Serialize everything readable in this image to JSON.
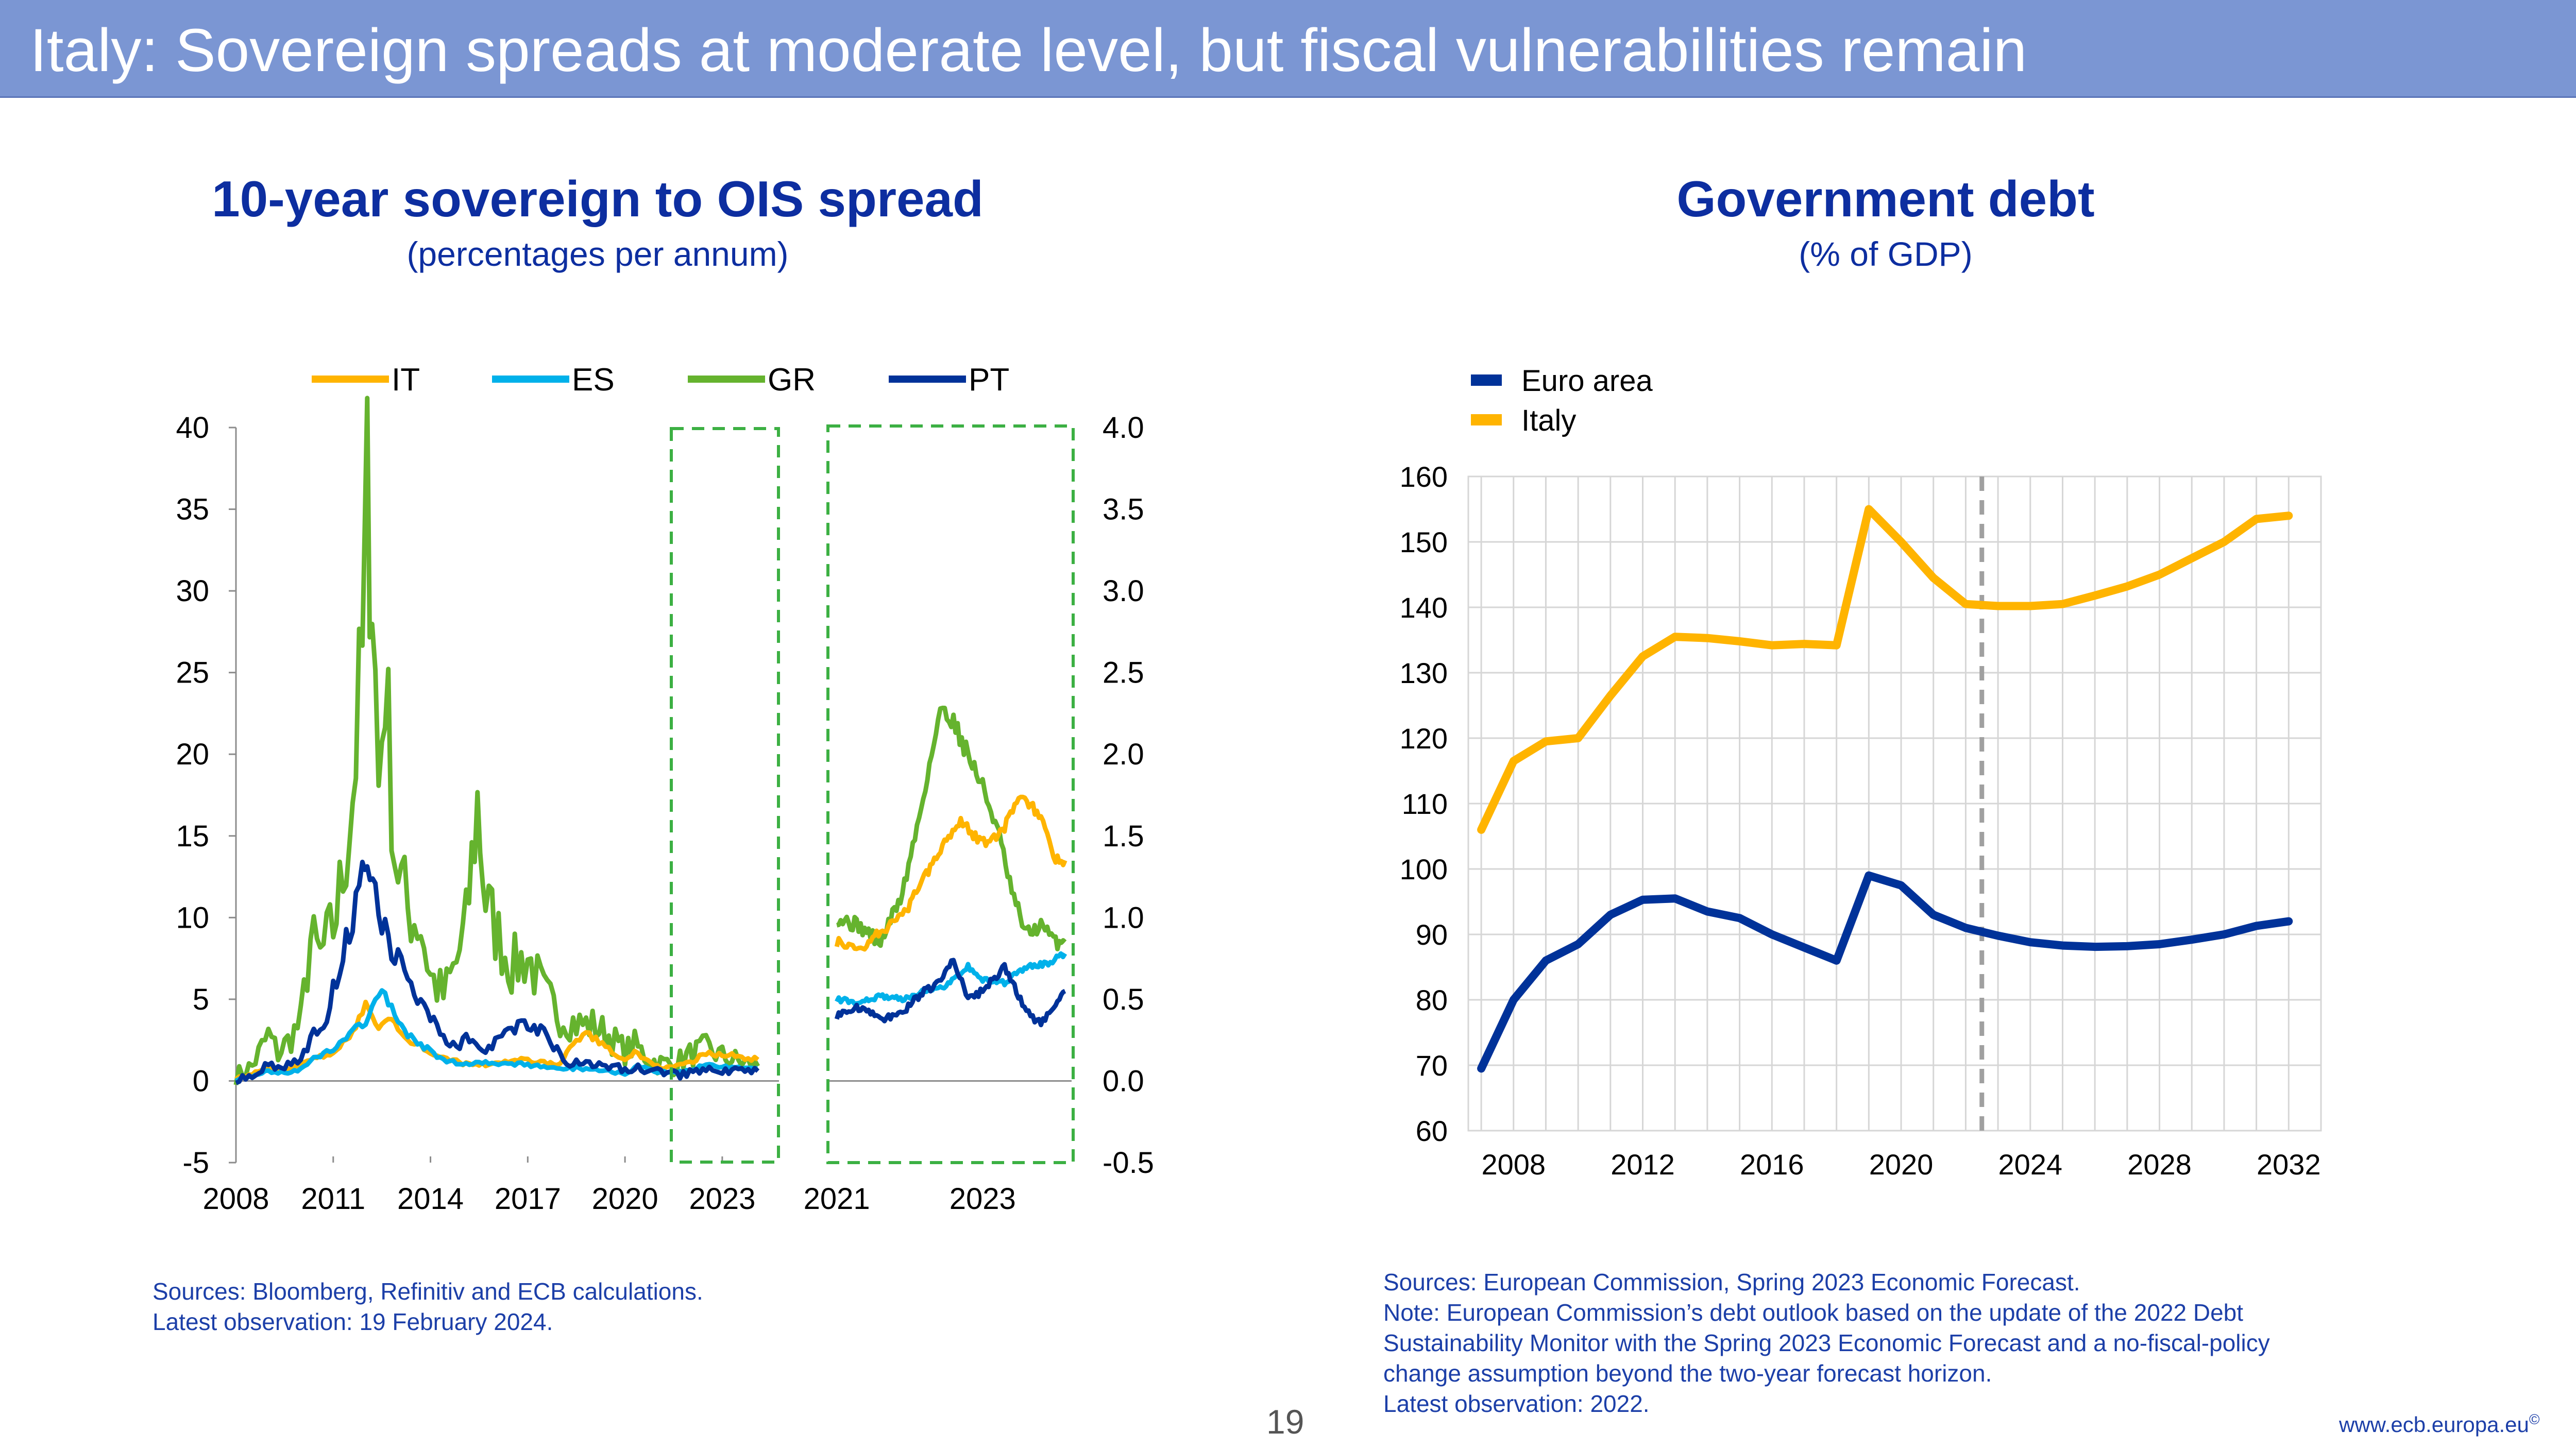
{
  "header": {
    "title": "Italy: Sovereign spreads at moderate level, but fiscal vulnerabilities remain"
  },
  "left_chart": {
    "title": "10-year sovereign to OIS spread",
    "subtitle": "(percentages per annum)",
    "legend": [
      "IT",
      "ES",
      "GR",
      "PT"
    ],
    "sources": "Sources: Bloomberg, Refinitiv and ECB calculations.",
    "latest": "Latest observation: 19 February 2024."
  },
  "right_chart": {
    "title": "Government debt",
    "subtitle": "(% of GDP)",
    "legend": [
      "Euro area",
      "Italy"
    ],
    "sources": "Sources: European Commission, Spring 2023 Economic Forecast.",
    "note_lines": [
      "Note: European Commission’s debt outlook based on the update of the 2022 Debt",
      "Sustainability Monitor with the Spring 2023 Economic Forecast and a no-fiscal-policy",
      "change assumption beyond the two-year forecast horizon."
    ],
    "latest": "Latest observation: 2022."
  },
  "footer": {
    "page_number": "19",
    "url": "www.ecb.europa.eu",
    "url_mark": "©"
  },
  "colors": {
    "IT": "#ffb400",
    "ES": "#00b1ea",
    "GR": "#65b32e",
    "PT": "#003299",
    "Euro area": "#003299",
    "Italy": "#ffb400",
    "frame": "#3cb043"
  },
  "chart_data": [
    {
      "type": "line",
      "name": "10-year sovereign to OIS spread",
      "panel": "full period",
      "x_ticks": [
        "2008",
        "2011",
        "2014",
        "2017",
        "2020",
        "2023"
      ],
      "ylim": [
        -5,
        40
      ],
      "y_ticks": [
        "40",
        "35",
        "30",
        "25",
        "20",
        "15",
        "10",
        "5",
        "0",
        "-5"
      ],
      "series": [
        {
          "name": "IT",
          "x": [
            2008.0,
            2008.5,
            2009.0,
            2009.5,
            2010.0,
            2010.5,
            2011.0,
            2011.5,
            2011.8,
            2012.0,
            2012.4,
            2012.8,
            2013.2,
            2013.6,
            2014.0,
            2014.5,
            2015.0,
            2015.5,
            2016.0,
            2016.5,
            2017.0,
            2017.5,
            2018.0,
            2018.4,
            2018.8,
            2019.2,
            2019.6,
            2020.0,
            2020.3,
            2020.6,
            2021.0,
            2021.5,
            2022.0,
            2022.5,
            2023.0,
            2023.5,
            2024.1
          ],
          "y": [
            0.2,
            0.4,
            0.8,
            0.7,
            1.0,
            1.4,
            1.8,
            2.6,
            3.8,
            4.6,
            3.4,
            3.8,
            2.6,
            2.2,
            1.8,
            1.3,
            1.1,
            1.0,
            1.1,
            1.2,
            1.3,
            1.1,
            1.0,
            2.4,
            2.9,
            2.4,
            1.8,
            1.2,
            1.9,
            1.3,
            0.9,
            0.8,
            1.1,
            1.7,
            1.6,
            1.5,
            1.3
          ]
        },
        {
          "name": "ES",
          "x": [
            2008.0,
            2008.5,
            2009.0,
            2009.5,
            2010.0,
            2010.5,
            2011.0,
            2011.5,
            2011.8,
            2012.0,
            2012.5,
            2012.8,
            2013.2,
            2013.6,
            2014.0,
            2014.5,
            2015.0,
            2015.5,
            2016.0,
            2016.5,
            2017.0,
            2017.5,
            2018.0,
            2018.5,
            2019.0,
            2019.5,
            2020.0,
            2020.4,
            2020.8,
            2021.2,
            2021.6,
            2022.0,
            2022.5,
            2023.0,
            2023.5,
            2024.1
          ],
          "y": [
            0.1,
            0.3,
            0.6,
            0.5,
            0.7,
            1.5,
            2.0,
            2.8,
            3.4,
            3.6,
            5.6,
            4.4,
            3.0,
            2.4,
            1.8,
            1.2,
            1.0,
            1.2,
            1.1,
            1.0,
            1.0,
            0.8,
            0.7,
            0.8,
            0.7,
            0.6,
            0.5,
            0.9,
            0.6,
            0.5,
            0.5,
            0.6,
            1.0,
            0.9,
            0.8,
            0.8
          ]
        },
        {
          "name": "GR",
          "x": [
            2008.0,
            2008.5,
            2009.0,
            2009.3,
            2009.6,
            2010.0,
            2010.3,
            2010.6,
            2011.0,
            2011.3,
            2011.6,
            2011.9,
            2012.05,
            2012.2,
            2012.4,
            2012.6,
            2012.9,
            2013.3,
            2013.7,
            2014.0,
            2014.4,
            2014.8,
            2015.1,
            2015.45,
            2015.7,
            2016.0,
            2016.5,
            2017.0,
            2017.5,
            2018.0,
            2018.5,
            2019.0,
            2019.5,
            2020.0,
            2020.3,
            2020.7,
            2021.0,
            2021.5,
            2022.0,
            2022.5,
            2023.0,
            2023.5,
            2024.1
          ],
          "y": [
            0.3,
            0.9,
            2.8,
            1.7,
            2.4,
            3.6,
            8.6,
            7.6,
            9.4,
            12.6,
            17.6,
            26.0,
            36.0,
            31.0,
            18.0,
            25.0,
            14.0,
            10.5,
            9.5,
            6.4,
            5.2,
            7.2,
            9.6,
            17.0,
            11.0,
            9.3,
            7.0,
            7.6,
            5.3,
            4.0,
            3.5,
            3.4,
            2.8,
            1.8,
            2.2,
            1.4,
            1.1,
            1.0,
            1.6,
            2.0,
            1.5,
            1.2,
            0.9
          ]
        },
        {
          "name": "PT",
          "x": [
            2008.0,
            2008.5,
            2009.0,
            2009.5,
            2010.0,
            2010.4,
            2010.8,
            2011.2,
            2011.6,
            2011.9,
            2012.05,
            2012.3,
            2012.6,
            2012.9,
            2013.3,
            2013.7,
            2014.0,
            2014.4,
            2014.8,
            2015.2,
            2015.6,
            2016.0,
            2016.5,
            2017.0,
            2017.4,
            2017.8,
            2018.2,
            2018.6,
            2019.0,
            2019.5,
            2020.0,
            2020.4,
            2020.8,
            2021.3,
            2021.8,
            2022.3,
            2022.8,
            2023.3,
            2023.8,
            2024.1
          ],
          "y": [
            0.1,
            0.4,
            0.9,
            0.8,
            1.5,
            2.8,
            4.0,
            7.2,
            10.0,
            12.6,
            14.0,
            11.0,
            9.5,
            7.6,
            6.2,
            4.6,
            4.0,
            2.6,
            2.2,
            2.8,
            2.0,
            2.4,
            2.9,
            3.6,
            3.0,
            2.2,
            1.2,
            1.0,
            0.9,
            0.8,
            0.7,
            0.9,
            0.6,
            0.4,
            0.4,
            0.6,
            0.6,
            0.6,
            0.5,
            0.6
          ]
        }
      ]
    },
    {
      "type": "line",
      "name": "10-year sovereign to OIS spread",
      "panel": "zoom",
      "x_ticks": [
        "2021",
        "2023"
      ],
      "ylim": [
        -0.5,
        4.0
      ],
      "y_ticks": [
        "4.0",
        "3.5",
        "3.0",
        "2.5",
        "2.0",
        "1.5",
        "1.0",
        "0.5",
        "0.0",
        "-0.5"
      ],
      "series": [
        {
          "name": "IT",
          "x": [
            2021.0,
            2021.3,
            2021.6,
            2021.9,
            2022.2,
            2022.45,
            2022.7,
            2022.9,
            2023.1,
            2023.3,
            2023.55,
            2023.8,
            2024.0,
            2024.13
          ],
          "y": [
            0.85,
            0.8,
            0.92,
            1.0,
            1.25,
            1.45,
            1.6,
            1.5,
            1.45,
            1.55,
            1.75,
            1.6,
            1.35,
            1.35
          ]
        },
        {
          "name": "ES",
          "x": [
            2021.0,
            2021.3,
            2021.6,
            2021.9,
            2022.2,
            2022.5,
            2022.8,
            2023.0,
            2023.3,
            2023.6,
            2023.9,
            2024.13
          ],
          "y": [
            0.5,
            0.48,
            0.52,
            0.5,
            0.55,
            0.58,
            0.7,
            0.62,
            0.6,
            0.7,
            0.72,
            0.78
          ]
        },
        {
          "name": "GR",
          "x": [
            2021.0,
            2021.3,
            2021.6,
            2021.9,
            2022.1,
            2022.3,
            2022.45,
            2022.6,
            2022.8,
            2023.0,
            2023.2,
            2023.4,
            2023.6,
            2023.8,
            2024.0,
            2024.13
          ],
          "y": [
            1.0,
            0.95,
            0.85,
            1.15,
            1.55,
            2.0,
            2.3,
            2.2,
            2.0,
            1.8,
            1.55,
            1.15,
            0.9,
            0.95,
            0.85,
            0.85
          ]
        },
        {
          "name": "PT",
          "x": [
            2021.0,
            2021.3,
            2021.6,
            2021.9,
            2022.2,
            2022.4,
            2022.6,
            2022.8,
            2023.0,
            2023.3,
            2023.6,
            2023.8,
            2024.0,
            2024.13
          ],
          "y": [
            0.4,
            0.45,
            0.38,
            0.42,
            0.55,
            0.6,
            0.75,
            0.5,
            0.55,
            0.7,
            0.42,
            0.35,
            0.45,
            0.55
          ]
        }
      ]
    },
    {
      "type": "line",
      "name": "Government debt",
      "x_ticks": [
        "2008",
        "2012",
        "2016",
        "2020",
        "2024",
        "2028",
        "2032"
      ],
      "ylim": [
        60,
        160
      ],
      "y_ticks": [
        "160",
        "150",
        "140",
        "130",
        "120",
        "110",
        "100",
        "90",
        "80",
        "70",
        "60"
      ],
      "latest_observation_year": 2022,
      "series": [
        {
          "name": "Euro area",
          "x": [
            2007,
            2008,
            2009,
            2010,
            2011,
            2012,
            2013,
            2014,
            2015,
            2016,
            2017,
            2018,
            2019,
            2020,
            2021,
            2022,
            2023,
            2024,
            2025,
            2026,
            2027,
            2028,
            2029,
            2030,
            2031,
            2032
          ],
          "y": [
            69.5,
            80.0,
            86.0,
            88.5,
            93.0,
            95.3,
            95.5,
            93.5,
            92.5,
            90.0,
            88.0,
            86.0,
            99.0,
            97.5,
            93.0,
            91.0,
            89.8,
            88.8,
            88.3,
            88.1,
            88.2,
            88.5,
            89.2,
            90.0,
            91.3,
            92.0
          ]
        },
        {
          "name": "Italy",
          "x": [
            2007,
            2008,
            2009,
            2010,
            2011,
            2012,
            2013,
            2014,
            2015,
            2016,
            2017,
            2018,
            2019,
            2020,
            2021,
            2022,
            2023,
            2024,
            2025,
            2026,
            2027,
            2028,
            2029,
            2030,
            2031,
            2032
          ],
          "y": [
            106.0,
            116.5,
            119.5,
            120.0,
            126.5,
            132.5,
            135.5,
            135.3,
            134.8,
            134.2,
            134.4,
            134.2,
            155.0,
            150.0,
            144.5,
            140.5,
            140.2,
            140.2,
            140.5,
            141.8,
            143.2,
            145.0,
            147.5,
            150.0,
            153.5,
            154.0
          ]
        }
      ]
    }
  ]
}
